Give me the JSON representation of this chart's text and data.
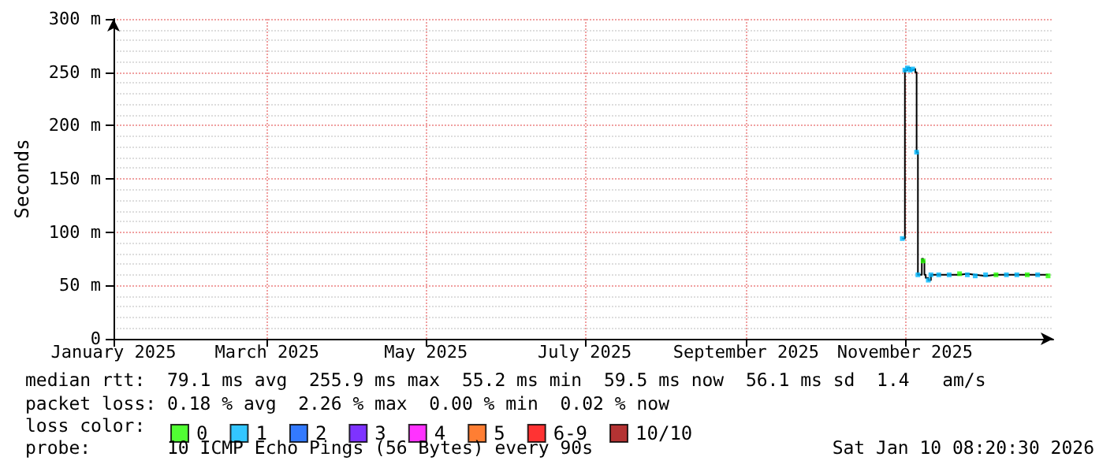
{
  "chart_data": {
    "type": "step",
    "ylabel": "Seconds",
    "legend_title": "loss color:",
    "legend": "bottom",
    "grid": true,
    "xlim": [
      "2025-01-01",
      "2025-12-28"
    ],
    "xticks": [
      {
        "value": "2025-01-01",
        "label": "January 2025"
      },
      {
        "value": "2025-03-01",
        "label": "March 2025"
      },
      {
        "value": "2025-05-01",
        "label": "May 2025"
      },
      {
        "value": "2025-07-01",
        "label": "July 2025"
      },
      {
        "value": "2025-09-01",
        "label": "September 2025"
      },
      {
        "value": "2025-11-01",
        "label": "November 2025"
      }
    ],
    "ylim": [
      0,
      300
    ],
    "yticks": [
      0,
      {
        "value": 50,
        "label": "50 m"
      },
      {
        "value": 100,
        "label": "100 m"
      },
      {
        "value": 150,
        "label": "150 m"
      },
      {
        "value": 200,
        "label": "200 m"
      },
      {
        "value": 250,
        "label": "250 m"
      },
      {
        "value": 300,
        "label": "300 m"
      }
    ],
    "series": [
      {
        "color": "#000000",
        "marker": "none",
        "x": [
          "2025-10-31",
          "2025-11-01",
          "2025-11-02",
          "2025-11-03",
          "2025-11-04",
          "2025-11-05",
          "2025-11-05T12:00",
          "2025-11-06",
          "2025-11-07",
          "2025-11-07T12:00",
          "2025-11-08",
          "2025-11-08T12:00",
          "2025-11-09",
          "2025-11-10",
          "2025-11-11",
          "2025-11-14",
          "2025-11-18",
          "2025-11-22",
          "2025-11-25",
          "2025-11-28",
          "2025-12-02",
          "2025-12-06",
          "2025-12-10",
          "2025-12-14",
          "2025-12-18",
          "2025-12-22",
          "2025-12-26"
        ],
        "values": [
          94,
          252,
          254,
          252,
          253,
          250,
          175,
          60,
          60,
          75,
          73,
          60,
          57,
          55,
          60,
          60,
          60,
          61,
          60,
          59,
          60,
          60,
          60,
          60,
          60,
          60,
          59
        ]
      },
      {
        "name": "0",
        "type": "scatter",
        "marker": "square",
        "color": "#26ff00",
        "x": [
          "2025-11-08",
          "2025-11-22",
          "2025-12-06",
          "2025-12-18",
          "2025-12-26"
        ],
        "values": [
          73,
          61,
          60,
          60,
          59
        ]
      },
      {
        "name": "1",
        "type": "scatter",
        "marker": "square",
        "color": "#00b8ff",
        "x": [
          "2025-10-31",
          "2025-11-01",
          "2025-11-02",
          "2025-11-03",
          "2025-11-04",
          "2025-11-05T12:00",
          "2025-11-06",
          "2025-11-10",
          "2025-11-11",
          "2025-11-14",
          "2025-11-18",
          "2025-11-25",
          "2025-11-28",
          "2025-12-02",
          "2025-12-10",
          "2025-12-14",
          "2025-12-22"
        ],
        "values": [
          94,
          252,
          254,
          252,
          253,
          175,
          60,
          55,
          60,
          60,
          60,
          60,
          59,
          60,
          60,
          60,
          60
        ]
      },
      {
        "name": "2",
        "type": "scatter",
        "marker": "square",
        "color": "#0059ff"
      },
      {
        "name": "3",
        "type": "scatter",
        "marker": "square",
        "color": "#5e00ff"
      },
      {
        "name": "4",
        "type": "scatter",
        "marker": "square",
        "color": "#ff00ff"
      },
      {
        "name": "5",
        "type": "scatter",
        "marker": "square",
        "color": "#ff5e00"
      },
      {
        "name": "6-9",
        "type": "scatter",
        "marker": "square",
        "color": "#ff0000"
      },
      {
        "name": "10/10",
        "type": "scatter",
        "marker": "square",
        "color": "#a10000"
      }
    ],
    "annotations": [
      "median rtt:  79.1 ms avg  255.9 ms max  55.2 ms min  59.5 ms now  56.1 ms sd  1.4   am/s",
      "packet loss: 0.18 % avg  2.26 % max  0.00 % min  0.02 % now",
      "probe:       10 ICMP Echo Pings (56 Bytes) every 90s",
      "Sat Jan 10 08:20:30 2026"
    ]
  }
}
